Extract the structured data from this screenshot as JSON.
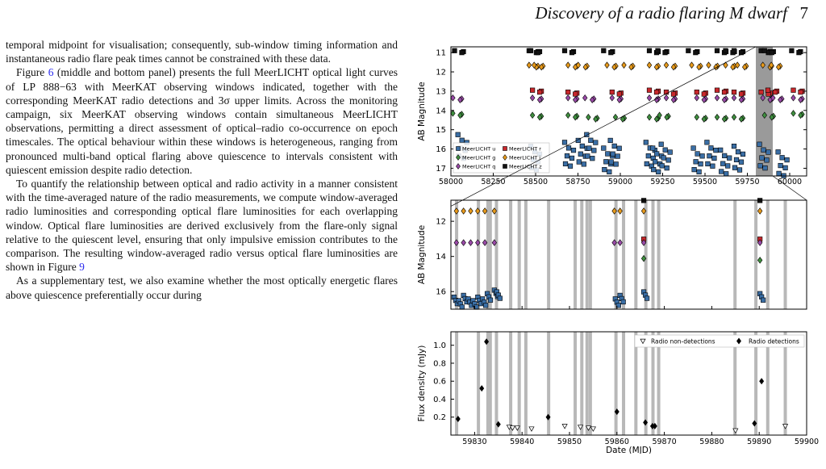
{
  "header": {
    "running_title": "Discovery of a radio flaring M dwarf",
    "page_number": "7"
  },
  "body_text": {
    "p1": "temporal midpoint for visualisation; consequently, sub-window timing information and instantaneous radio flare peak times cannot be constrained with these data.",
    "p2_lead": "Figure ",
    "p2_ref": "6",
    "p2_rest": " (middle and bottom panel) presents the full MeerLICHT optical light curves of LP 888−63 with MeerKAT observing windows indicated, together with the corresponding MeerKAT radio detections and 3σ upper limits. Across the monitoring campaign, six MeerKAT observing windows contain simultaneous MeerLICHT observations, permitting a direct assessment of optical–radio co-occurrence on epoch timescales. The optical behaviour within these windows is heterogeneous, ranging from pronounced multi-band optical flaring above quiescence to intervals consistent with quiescent emission despite radio detection.",
    "p3_lead": "To quantify the relationship between optical and radio activity in a manner consistent with the time-averaged nature of the radio measurements, we compute window-averaged radio luminosities and corresponding optical flare luminosities for each overlapping window. Optical flare luminosities are derived exclusively from the flare-only signal relative to the quiescent level, ensuring that only impulsive emission contributes to the comparison. The resulting window-averaged radio versus optical flare luminosities are shown in Figure ",
    "p3_ref": "9",
    "p4": "As a supplementary test, we also examine whether the most optically energetic flares above quiescence preferentially occur during"
  },
  "figure": {
    "top_panel": {
      "ylabel": "AB Magnitude",
      "yticks": [
        "11",
        "12",
        "13",
        "14",
        "15",
        "16",
        "17"
      ],
      "xticks": [
        "58000",
        "58250",
        "58500",
        "58750",
        "59000",
        "59250",
        "59500",
        "59750",
        "60000"
      ],
      "legend": [
        "MeerLICHT u",
        "MeerLICHT r",
        "MeerLICHT g",
        "MeerLICHT i",
        "MeerLICHT q",
        "MeerLICHT z"
      ]
    },
    "middle_panel": {
      "ylabel": "AB Magnitude",
      "yticks": [
        "12",
        "14",
        "16"
      ]
    },
    "bottom_panel": {
      "ylabel": "Flux density (mJy)",
      "yticks": [
        "0.2",
        "0.4",
        "0.6",
        "0.8",
        "1.0"
      ],
      "xticks": [
        "59830",
        "59840",
        "59850",
        "59860",
        "59870",
        "59880",
        "59890",
        "59900"
      ],
      "xlabel": "Date (MJD)",
      "legend": [
        "Radio non-detections",
        "Radio detections"
      ]
    },
    "colors": {
      "u": "#3a6ea5",
      "g": "#3f8f3f",
      "q": "#9a4aa8",
      "r": "#c8282c",
      "i": "#e89a1a",
      "z": "#111111",
      "window": "#b8b8b8"
    }
  },
  "chart_data": [
    {
      "type": "scatter",
      "title": "",
      "xlabel": "",
      "ylabel": "AB Magnitude",
      "xlim": [
        58000,
        60100
      ],
      "ylim": [
        17.4,
        10.7
      ],
      "y_inverted": true,
      "grey_band": [
        59800,
        59900
      ],
      "series": [
        {
          "name": "MeerLICHT z",
          "color": "#111111",
          "x": [
            58050,
            58490,
            58500,
            58700,
            58930,
            59200,
            59250,
            59430,
            59600,
            59650,
            59700,
            59860,
            59880,
            60040
          ],
          "y": [
            10.95,
            10.95,
            10.95,
            10.95,
            10.95,
            10.95,
            10.95,
            10.95,
            10.95,
            10.95,
            10.95,
            10.95,
            10.95,
            10.95
          ]
        },
        {
          "name": "MeerLICHT i",
          "color": "#e89a1a",
          "x": [
            58490,
            58520,
            58720,
            58780,
            58950,
            59050,
            59200,
            59300,
            59450,
            59550,
            59650,
            59720,
            59870,
            59920
          ],
          "y": [
            11.7,
            11.7,
            11.7,
            11.7,
            11.7,
            11.7,
            11.7,
            11.7,
            11.7,
            11.7,
            11.7,
            11.7,
            11.7,
            11.7
          ]
        },
        {
          "name": "MeerLICHT r",
          "color": "#c8282c",
          "x": [
            58510,
            58720,
            58980,
            59200,
            59300,
            59480,
            59600,
            59700,
            59860,
            59900,
            60050
          ],
          "y": [
            13.0,
            13.1,
            13.1,
            13.0,
            13.1,
            13.1,
            13.0,
            13.1,
            13.1,
            13.0,
            13.0
          ]
        },
        {
          "name": "MeerLICHT q",
          "color": "#9a4aa8",
          "x": [
            58040,
            58510,
            58720,
            58820,
            58980,
            59200,
            59300,
            59480,
            59600,
            59700,
            59870,
            59930,
            60050
          ],
          "y": [
            13.4,
            13.4,
            13.4,
            13.4,
            13.4,
            13.4,
            13.4,
            13.4,
            13.4,
            13.4,
            13.4,
            13.4,
            13.4
          ]
        },
        {
          "name": "MeerLICHT g",
          "color": "#3f8f3f",
          "x": [
            58040,
            58510,
            58720,
            58840,
            59000,
            59200,
            59260,
            59480,
            59600,
            59700,
            59880,
            60050
          ],
          "y": [
            14.2,
            14.3,
            14.3,
            14.4,
            14.4,
            14.4,
            14.3,
            14.4,
            14.4,
            14.4,
            14.3,
            14.2
          ]
        },
        {
          "name": "MeerLICHT u",
          "color": "#3a6ea5",
          "x": [
            58070,
            58500,
            58700,
            58780,
            58830,
            58930,
            58970,
            59180,
            59220,
            59270,
            59460,
            59540,
            59620,
            59700,
            59850,
            59960
          ],
          "y": [
            15.9,
            16.5,
            16.3,
            16.2,
            15.9,
            16.6,
            16.2,
            16.3,
            16.6,
            16.4,
            16.6,
            16.3,
            16.7,
            16.5,
            16.4,
            16.8
          ]
        }
      ]
    },
    {
      "type": "scatter",
      "title": "",
      "xlabel": "",
      "ylabel": "AB Magnitude",
      "xlim": [
        59825,
        59900
      ],
      "ylim": [
        17.0,
        10.8
      ],
      "y_inverted": true,
      "radio_windows": [
        59826.2,
        59830.8,
        59832.8,
        59833.3,
        59834.6,
        59837.6,
        59839.4,
        59840.8,
        59845.6,
        59851.2,
        59852.6,
        59853.7,
        59854.4,
        59859.8,
        59861.4,
        59864.0,
        59866.1,
        59867.6,
        59868.8,
        59884.9,
        59889.3,
        59891.8,
        59895.5
      ],
      "series": [
        {
          "name": "MeerLICHT i",
          "color": "#e89a1a",
          "x": [
            59826.5,
            59828.0,
            59829.5,
            59831.0,
            59832.5,
            59834.5,
            59859.8,
            59861.0,
            59866.0,
            59890.5
          ],
          "y": [
            11.6,
            11.6,
            11.6,
            11.6,
            11.6,
            11.6,
            11.6,
            11.6,
            11.6,
            11.6
          ]
        },
        {
          "name": "MeerLICHT z",
          "color": "#111111",
          "x": [
            59866.0,
            59890.5
          ],
          "y": [
            11.0,
            11.0
          ]
        },
        {
          "name": "MeerLICHT r",
          "color": "#c8282c",
          "x": [
            59866.0,
            59890.5
          ],
          "y": [
            13.2,
            13.2
          ]
        },
        {
          "name": "MeerLICHT q",
          "color": "#9a4aa8",
          "x": [
            59826.5,
            59828.0,
            59829.5,
            59831.0,
            59832.5,
            59834.5,
            59859.8,
            59861.0,
            59866.0,
            59890.5
          ],
          "y": [
            13.4,
            13.4,
            13.4,
            13.4,
            13.4,
            13.4,
            13.4,
            13.4,
            13.4,
            13.4
          ]
        },
        {
          "name": "MeerLICHT g",
          "color": "#3f8f3f",
          "x": [
            59866.0,
            59890.5
          ],
          "y": [
            14.3,
            14.4
          ]
        },
        {
          "name": "MeerLICHT u",
          "color": "#3a6ea5",
          "x": [
            59826.0,
            59827.0,
            59828.0,
            59829.0,
            59830.0,
            59831.0,
            59832.0,
            59833.0,
            59834.5,
            59835.0,
            59860.0,
            59861.0,
            59866.0,
            59890.5
          ],
          "y": [
            16.5,
            16.7,
            16.4,
            16.6,
            16.7,
            16.5,
            16.6,
            16.3,
            16.1,
            16.2,
            16.6,
            16.4,
            16.2,
            16.3
          ]
        }
      ]
    },
    {
      "type": "scatter",
      "title": "",
      "xlabel": "Date (MJD)",
      "ylabel": "Flux density (mJy)",
      "xlim": [
        59825,
        59900
      ],
      "ylim": [
        0.0,
        1.15
      ],
      "radio_windows": [
        59826.2,
        59830.8,
        59832.8,
        59833.3,
        59834.6,
        59837.6,
        59839.4,
        59840.8,
        59845.6,
        59851.2,
        59852.6,
        59853.7,
        59854.4,
        59859.8,
        59861.4,
        59864.0,
        59866.1,
        59867.6,
        59868.8,
        59884.9,
        59889.3,
        59891.8,
        59895.5
      ],
      "series": [
        {
          "name": "Radio non-detections",
          "color": "#ffffff",
          "x": [
            59837.3,
            59838.0,
            59839.0,
            59842.0,
            59849.0,
            59852.3,
            59854.0,
            59855.0,
            59885.0,
            59895.5
          ],
          "y": [
            0.09,
            0.08,
            0.08,
            0.07,
            0.1,
            0.09,
            0.08,
            0.07,
            0.05,
            0.1
          ]
        },
        {
          "name": "Radio detections",
          "color": "#000000",
          "x": [
            59826.5,
            59831.5,
            59832.5,
            59835.0,
            59845.5,
            59860.0,
            59866.0,
            59867.5,
            59868.0,
            59889.0,
            59890.5
          ],
          "y": [
            0.18,
            0.52,
            1.04,
            0.12,
            0.2,
            0.26,
            0.14,
            0.1,
            0.1,
            0.13,
            0.6
          ]
        }
      ]
    }
  ]
}
